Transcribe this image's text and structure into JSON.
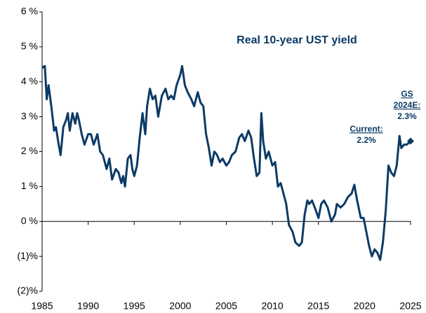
{
  "chart_data": {
    "type": "line",
    "title": "Real 10-year UST yield",
    "annotations": [
      {
        "lines": [
          "Current:",
          "2.2%"
        ]
      },
      {
        "lines": [
          "GS",
          "2024E:",
          "2.3%"
        ]
      }
    ],
    "x": [
      1985.0,
      1985.3,
      1985.5,
      1985.7,
      1986.0,
      1986.3,
      1986.5,
      1986.8,
      1987.0,
      1987.3,
      1987.6,
      1987.8,
      1988.0,
      1988.3,
      1988.6,
      1988.8,
      1989.0,
      1989.3,
      1989.6,
      1990.0,
      1990.3,
      1990.6,
      1991.0,
      1991.3,
      1991.6,
      1992.0,
      1992.3,
      1992.6,
      1993.0,
      1993.3,
      1993.6,
      1993.8,
      1994.0,
      1994.3,
      1994.6,
      1994.8,
      1995.0,
      1995.3,
      1995.6,
      1995.9,
      1996.2,
      1996.4,
      1996.7,
      1997.0,
      1997.3,
      1997.6,
      1998.0,
      1998.4,
      1998.7,
      1999.0,
      1999.3,
      1999.6,
      2000.0,
      2000.2,
      2000.5,
      2000.8,
      2001.2,
      2001.5,
      2001.9,
      2002.2,
      2002.5,
      2002.8,
      2003.1,
      2003.4,
      2003.7,
      2004.0,
      2004.3,
      2004.6,
      2005.0,
      2005.3,
      2005.6,
      2006.0,
      2006.4,
      2006.7,
      2007.0,
      2007.4,
      2007.7,
      2008.0,
      2008.3,
      2008.6,
      2008.8,
      2009.0,
      2009.3,
      2009.6,
      2010.0,
      2010.3,
      2010.6,
      2010.9,
      2011.2,
      2011.5,
      2011.8,
      2012.2,
      2012.5,
      2012.9,
      2013.2,
      2013.5,
      2013.8,
      2014.0,
      2014.3,
      2014.6,
      2015.0,
      2015.3,
      2015.6,
      2016.0,
      2016.4,
      2016.8,
      2017.0,
      2017.4,
      2017.8,
      2018.2,
      2018.6,
      2018.9,
      2019.2,
      2019.6,
      2019.9,
      2020.2,
      2020.5,
      2020.8,
      2021.1,
      2021.4,
      2021.7,
      2022.0,
      2022.3,
      2022.6,
      2022.9,
      2023.2,
      2023.5,
      2023.8,
      2024.0,
      2024.3,
      2024.6,
      2025.0
    ],
    "series": [
      {
        "name": "Real 10-year UST yield",
        "color": "#0c3a66",
        "values": [
          4.4,
          4.45,
          3.5,
          3.9,
          3.3,
          2.6,
          2.7,
          2.2,
          1.9,
          2.7,
          2.9,
          3.1,
          2.6,
          3.1,
          2.8,
          3.1,
          2.9,
          2.5,
          2.2,
          2.5,
          2.5,
          2.2,
          2.5,
          2.0,
          1.9,
          1.5,
          1.8,
          1.2,
          1.5,
          1.4,
          1.1,
          1.3,
          1.0,
          1.8,
          1.9,
          1.5,
          1.3,
          1.6,
          2.4,
          3.1,
          2.5,
          3.3,
          3.8,
          3.5,
          3.6,
          3.0,
          3.6,
          3.8,
          3.5,
          3.6,
          3.5,
          3.9,
          4.2,
          4.45,
          3.9,
          3.7,
          3.5,
          3.3,
          3.7,
          3.4,
          3.3,
          2.5,
          2.1,
          1.6,
          2.0,
          1.9,
          1.7,
          1.8,
          1.6,
          1.7,
          1.9,
          2.0,
          2.4,
          2.5,
          2.3,
          2.6,
          2.4,
          1.8,
          1.3,
          1.4,
          3.1,
          2.3,
          1.8,
          2.0,
          1.6,
          1.7,
          1.0,
          1.1,
          0.8,
          0.5,
          -0.1,
          -0.3,
          -0.6,
          -0.7,
          -0.6,
          0.2,
          0.6,
          0.5,
          0.6,
          0.4,
          0.1,
          0.5,
          0.6,
          0.4,
          0.0,
          0.2,
          0.5,
          0.4,
          0.5,
          0.7,
          0.8,
          1.05,
          0.6,
          0.1,
          0.1,
          -0.3,
          -0.7,
          -1.0,
          -0.8,
          -0.9,
          -1.1,
          -0.6,
          0.3,
          1.6,
          1.4,
          1.3,
          1.6,
          2.45,
          2.1,
          2.2,
          2.2,
          2.3
        ]
      }
    ],
    "xlim": [
      1985,
      2025
    ],
    "xticks": [
      1985,
      1990,
      1995,
      2000,
      2005,
      2010,
      2015,
      2020,
      2025
    ],
    "ylim": [
      -2,
      6
    ],
    "yticks": [
      {
        "value": 6,
        "label": "6 %"
      },
      {
        "value": 5,
        "label": "5 %"
      },
      {
        "value": 4,
        "label": "4 %"
      },
      {
        "value": 3,
        "label": "3 %"
      },
      {
        "value": 2,
        "label": "2 %"
      },
      {
        "value": 1,
        "label": "1 %"
      },
      {
        "value": 0,
        "label": "0 %"
      },
      {
        "value": -1,
        "label": "(1)%"
      },
      {
        "value": -2,
        "label": "(2)%"
      }
    ],
    "grid": false,
    "end_marker": "diamond"
  }
}
